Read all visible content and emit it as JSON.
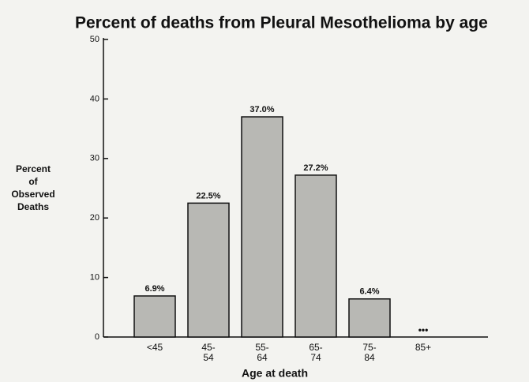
{
  "chart_data": {
    "type": "bar",
    "title": "Percent of deaths from Pleural Mesothelioma by age",
    "y_label": [
      "Percent",
      "of",
      "Observed",
      "Deaths"
    ],
    "x_label": "Age at death",
    "categories": [
      [
        "<45"
      ],
      [
        "45-",
        "54"
      ],
      [
        "55-",
        "64"
      ],
      [
        "65-",
        "74"
      ],
      [
        "75-",
        "84"
      ],
      [
        "85+"
      ]
    ],
    "values": [
      6.9,
      22.5,
      37.0,
      27.2,
      6.4,
      null
    ],
    "value_labels": [
      "6.9%",
      "22.5%",
      "37.0%",
      "27.2%",
      "6.4%",
      null
    ],
    "annotations": [
      "•••"
    ],
    "color": "#b8b8b4",
    "ylim": [
      0,
      50
    ],
    "yticks": [
      0,
      10,
      20,
      30,
      40,
      50
    ],
    "grid": false
  }
}
